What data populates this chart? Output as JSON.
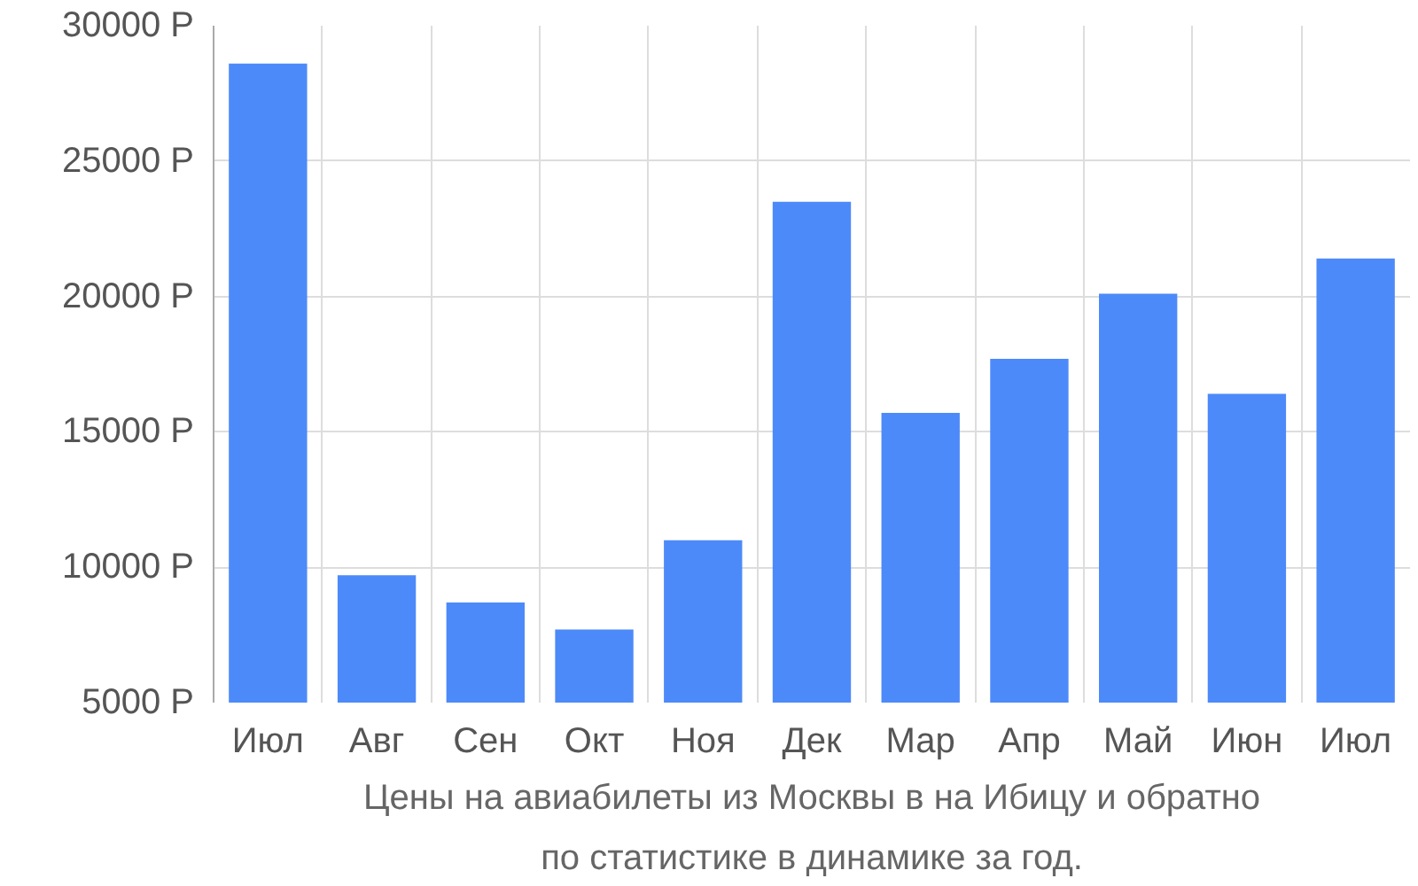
{
  "chart_data": {
    "type": "bar",
    "title": "Цены на авиабилеты из Москвы в на Ибицу и обратно\nпо статистике в динамике за год.",
    "categories": [
      "Июл",
      "Авг",
      "Сен",
      "Окт",
      "Ноя",
      "Дек",
      "Мар",
      "Апр",
      "Май",
      "Июн",
      "Июл"
    ],
    "values": [
      28600,
      9700,
      8700,
      7700,
      11000,
      23500,
      15700,
      17700,
      20100,
      16400,
      21400
    ],
    "color": "#4d8af9",
    "ylim": [
      5000,
      30000
    ],
    "yticks": [
      {
        "value": 5000,
        "label": "5000 Р"
      },
      {
        "value": 10000,
        "label": "10000 Р"
      },
      {
        "value": 15000,
        "label": "15000 Р"
      },
      {
        "value": 20000,
        "label": "20000 Р"
      },
      {
        "value": 25000,
        "label": "25000 Р"
      },
      {
        "value": 30000,
        "label": "30000 Р"
      }
    ],
    "grid": true
  }
}
